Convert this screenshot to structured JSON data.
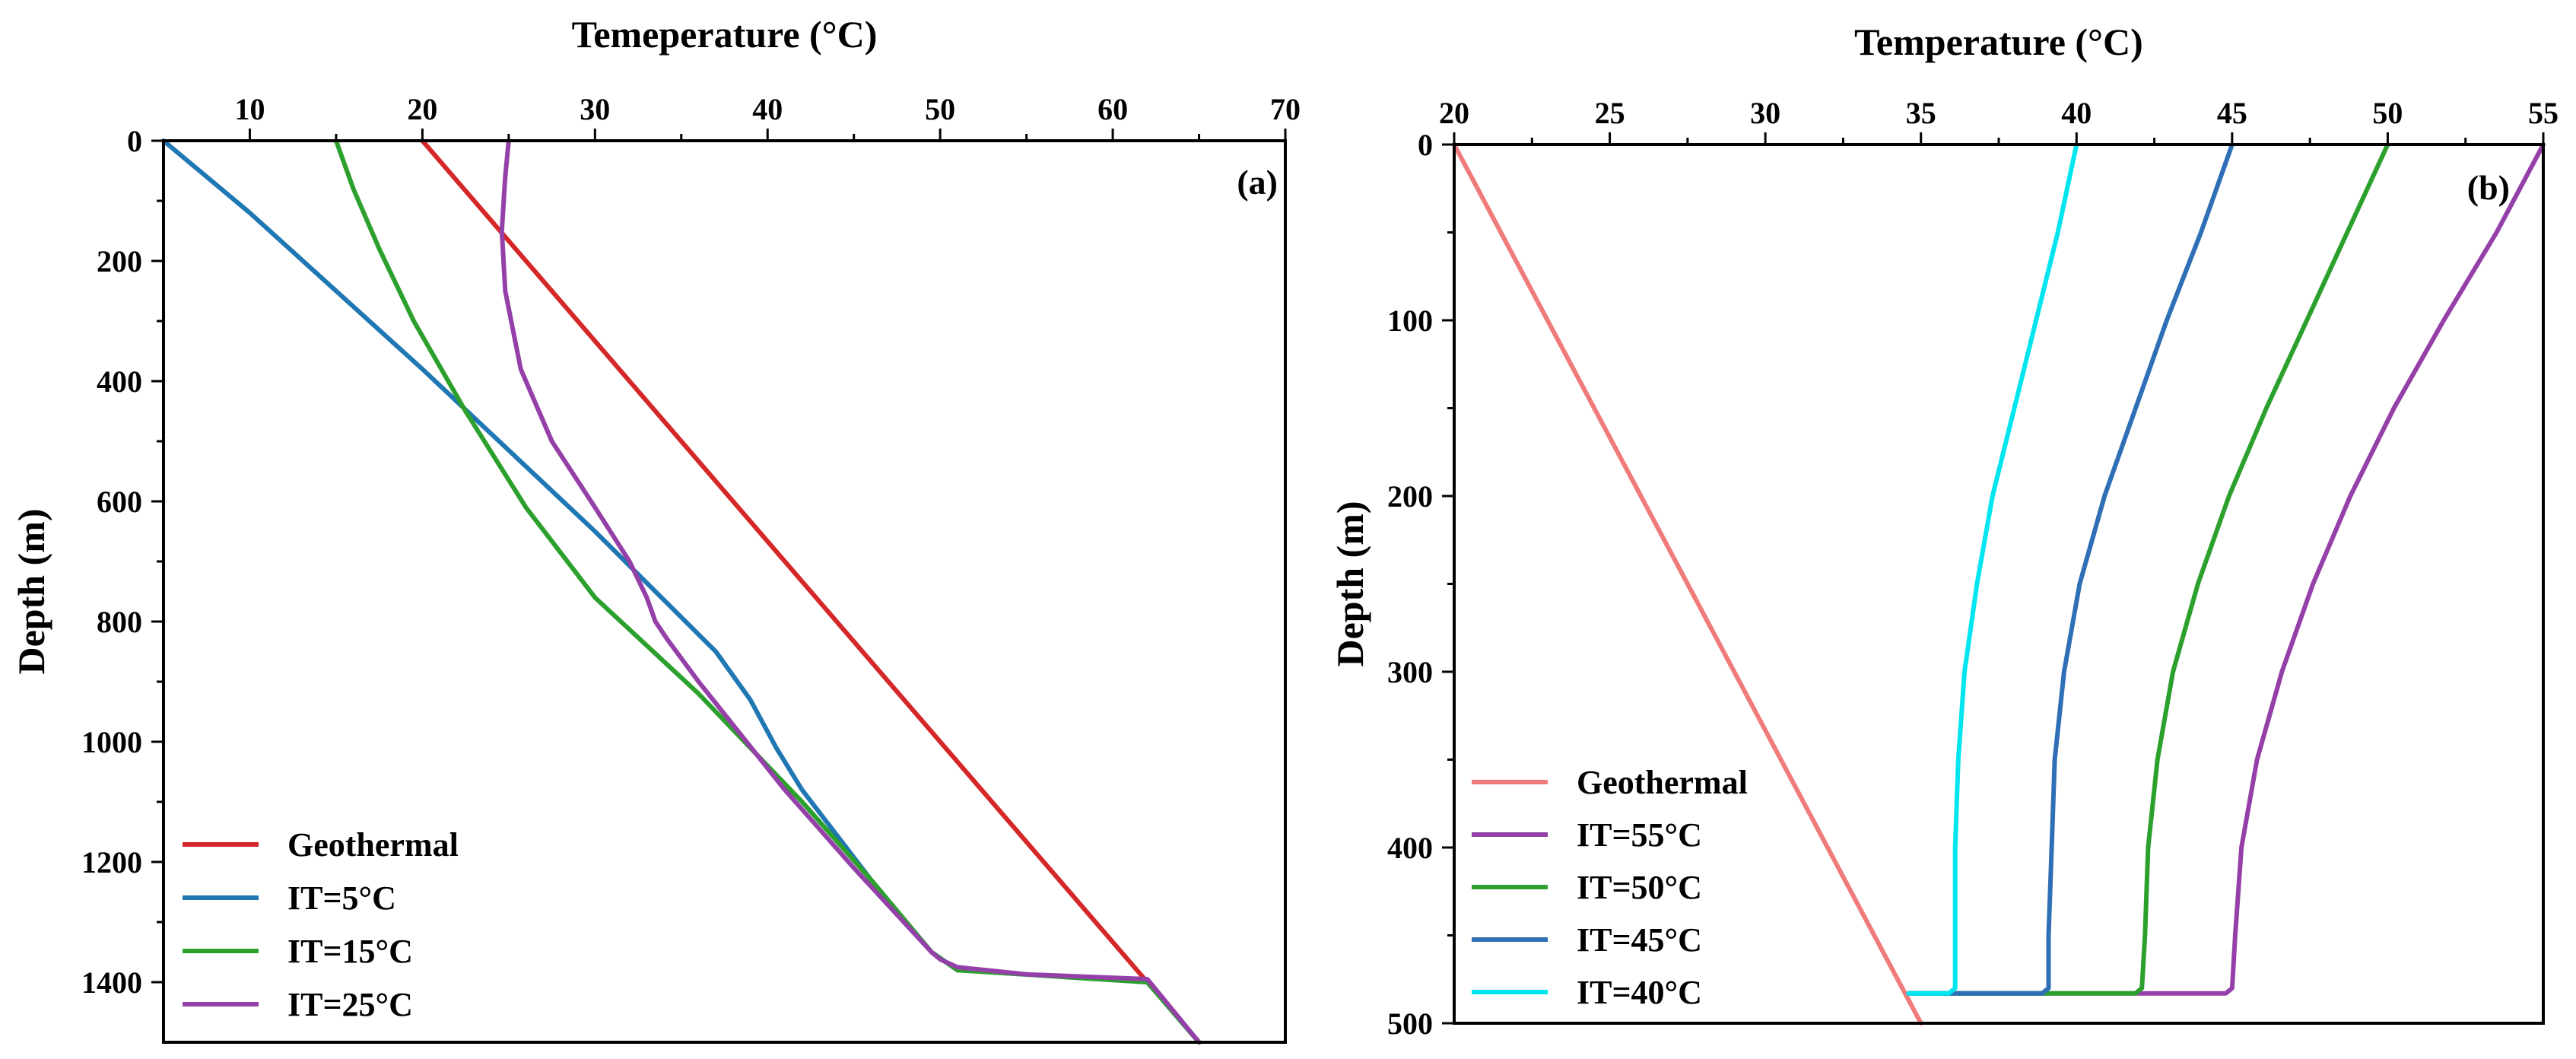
{
  "chart_data": [
    {
      "type": "line",
      "panel_label": "(a)",
      "xlabel": "Temeperature (°C)",
      "ylabel": "Depth (m)",
      "xlim": [
        5,
        70
      ],
      "ylim": [
        0,
        1500
      ],
      "y_inverted": true,
      "x_ticks": [
        "10",
        "20",
        "30",
        "40",
        "50",
        "60",
        "70"
      ],
      "y_ticks": [
        "0",
        "200",
        "400",
        "600",
        "800",
        "1000",
        "1200",
        "1400"
      ],
      "legend_position": "bottom-left",
      "series": [
        {
          "name": "Geothermal",
          "color": "#d62728",
          "points": [
            [
              20,
              0
            ],
            [
              62,
              1400
            ],
            [
              65,
              1500
            ]
          ]
        },
        {
          "name": "IT=5°C",
          "color": "#1f77b4",
          "points": [
            [
              5,
              0
            ],
            [
              10,
              120
            ],
            [
              20,
              380
            ],
            [
              30,
              650
            ],
            [
              37,
              850
            ],
            [
              39,
              930
            ],
            [
              40.5,
              1010
            ],
            [
              42,
              1080
            ],
            [
              46,
              1230
            ],
            [
              49.5,
              1350
            ],
            [
              51,
              1380
            ],
            [
              62,
              1400
            ],
            [
              65,
              1500
            ]
          ]
        },
        {
          "name": "IT=15°C",
          "color": "#2ca02c",
          "points": [
            [
              15,
              0
            ],
            [
              16,
              80
            ],
            [
              17.5,
              180
            ],
            [
              19.5,
              300
            ],
            [
              22.5,
              450
            ],
            [
              26,
              610
            ],
            [
              30,
              760
            ],
            [
              33,
              840
            ],
            [
              36,
              920
            ],
            [
              39,
              1010
            ],
            [
              42,
              1100
            ],
            [
              46,
              1230
            ],
            [
              49.5,
              1350
            ],
            [
              51,
              1380
            ],
            [
              62,
              1400
            ],
            [
              65,
              1500
            ]
          ]
        },
        {
          "name": "IT=25°C",
          "color": "#9440a8",
          "points": [
            [
              25,
              0
            ],
            [
              24.8,
              60
            ],
            [
              24.6,
              150
            ],
            [
              24.8,
              250
            ],
            [
              25.7,
              380
            ],
            [
              27.5,
              500
            ],
            [
              30,
              610
            ],
            [
              32,
              700
            ],
            [
              33,
              760
            ],
            [
              33.5,
              800
            ],
            [
              34.2,
              830
            ],
            [
              36,
              900
            ],
            [
              38.5,
              990
            ],
            [
              41,
              1080
            ],
            [
              45,
              1210
            ],
            [
              49.5,
              1350
            ],
            [
              50,
              1362
            ],
            [
              51,
              1375
            ],
            [
              55,
              1387
            ],
            [
              62,
              1395
            ],
            [
              65,
              1500
            ]
          ]
        }
      ]
    },
    {
      "type": "line",
      "panel_label": "(b)",
      "xlabel": "Temperature (°C)",
      "ylabel": "Depth (m)",
      "xlim": [
        20,
        55
      ],
      "ylim": [
        0,
        500
      ],
      "y_inverted": true,
      "x_ticks": [
        "20",
        "25",
        "30",
        "35",
        "40",
        "45",
        "50",
        "55"
      ],
      "y_ticks": [
        "0",
        "100",
        "200",
        "300",
        "400",
        "500"
      ],
      "legend_position": "bottom-left",
      "series": [
        {
          "name": "Geothermal",
          "color": "#f07b7b",
          "points": [
            [
              20,
              0
            ],
            [
              35,
              500
            ]
          ]
        },
        {
          "name": "IT=55°C",
          "color": "#9440a8",
          "points": [
            [
              55,
              0
            ],
            [
              53.5,
              50
            ],
            [
              51.8,
              100
            ],
            [
              50.2,
              150
            ],
            [
              48.8,
              200
            ],
            [
              47.6,
              250
            ],
            [
              46.6,
              300
            ],
            [
              45.8,
              350
            ],
            [
              45.3,
              400
            ],
            [
              45.1,
              450
            ],
            [
              45.0,
              480
            ],
            [
              44.8,
              483
            ],
            [
              34.6,
              483
            ]
          ]
        },
        {
          "name": "IT=50°C",
          "color": "#2ca02c",
          "points": [
            [
              50,
              0
            ],
            [
              48.7,
              50
            ],
            [
              47.4,
              100
            ],
            [
              46.1,
              150
            ],
            [
              44.9,
              200
            ],
            [
              43.9,
              250
            ],
            [
              43.1,
              300
            ],
            [
              42.6,
              350
            ],
            [
              42.3,
              400
            ],
            [
              42.2,
              450
            ],
            [
              42.1,
              480
            ],
            [
              41.9,
              483
            ],
            [
              34.6,
              483
            ]
          ]
        },
        {
          "name": "IT=45°C",
          "color": "#2f6fb5",
          "points": [
            [
              45,
              0
            ],
            [
              44.0,
              50
            ],
            [
              42.9,
              100
            ],
            [
              41.9,
              150
            ],
            [
              40.9,
              200
            ],
            [
              40.1,
              250
            ],
            [
              39.6,
              300
            ],
            [
              39.3,
              350
            ],
            [
              39.2,
              400
            ],
            [
              39.1,
              450
            ],
            [
              39.1,
              480
            ],
            [
              38.9,
              483
            ],
            [
              34.6,
              483
            ]
          ]
        },
        {
          "name": "IT=40°C",
          "color": "#00e5ee",
          "points": [
            [
              40,
              0
            ],
            [
              39.4,
              50
            ],
            [
              38.7,
              100
            ],
            [
              38.0,
              150
            ],
            [
              37.3,
              200
            ],
            [
              36.8,
              250
            ],
            [
              36.4,
              300
            ],
            [
              36.2,
              350
            ],
            [
              36.1,
              400
            ],
            [
              36.1,
              450
            ],
            [
              36.1,
              480
            ],
            [
              35.9,
              483
            ],
            [
              34.6,
              483
            ]
          ]
        }
      ]
    }
  ]
}
